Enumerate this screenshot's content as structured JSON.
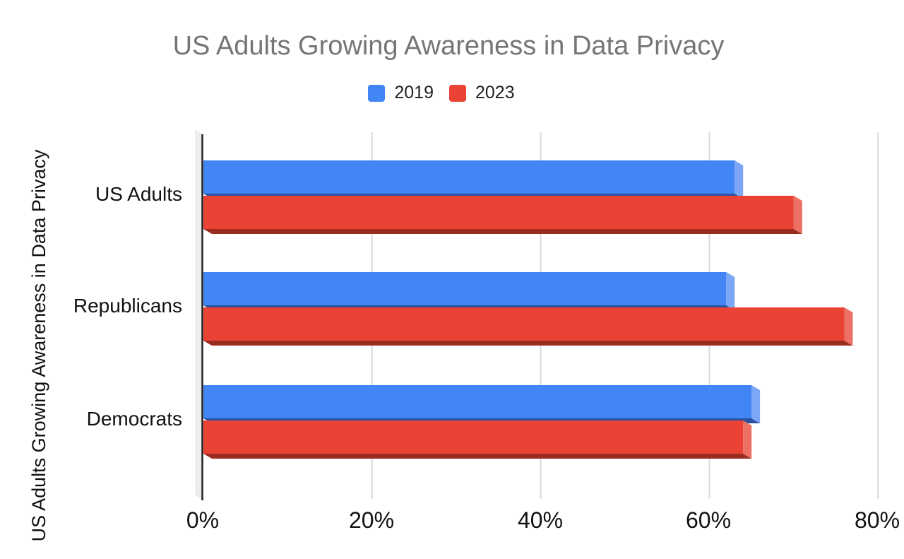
{
  "chart_data": {
    "type": "bar",
    "orientation": "horizontal",
    "effect": "3d-depth",
    "title": "US Adults Growing Awareness in Data Privacy",
    "y_axis_title": "US Adults Growing Awareness in Data Privacy",
    "categories": [
      "US Adults",
      "Republicans",
      "Democrats"
    ],
    "series": [
      {
        "name": "2019",
        "color": "#4285F4",
        "side_color": "#7DA7F6",
        "bottom_color": "#2A52A0",
        "values": [
          63,
          62,
          65
        ]
      },
      {
        "name": "2023",
        "color": "#EA4335",
        "side_color": "#EC7063",
        "bottom_color": "#9B2D20",
        "values": [
          70,
          76,
          64
        ]
      }
    ],
    "x_tick_labels": [
      "0%",
      "20%",
      "40%",
      "60%",
      "80%"
    ],
    "x_tick_values": [
      0,
      20,
      40,
      60,
      80
    ],
    "xlim": [
      0,
      83
    ],
    "grid": true,
    "legend_position": "top",
    "background": "#FFFFFF",
    "title_color": "#757575",
    "grid_color": "#DADADA",
    "axis_color": "#212121",
    "wall_color": "#EDEDED",
    "label_color": "#111111"
  }
}
